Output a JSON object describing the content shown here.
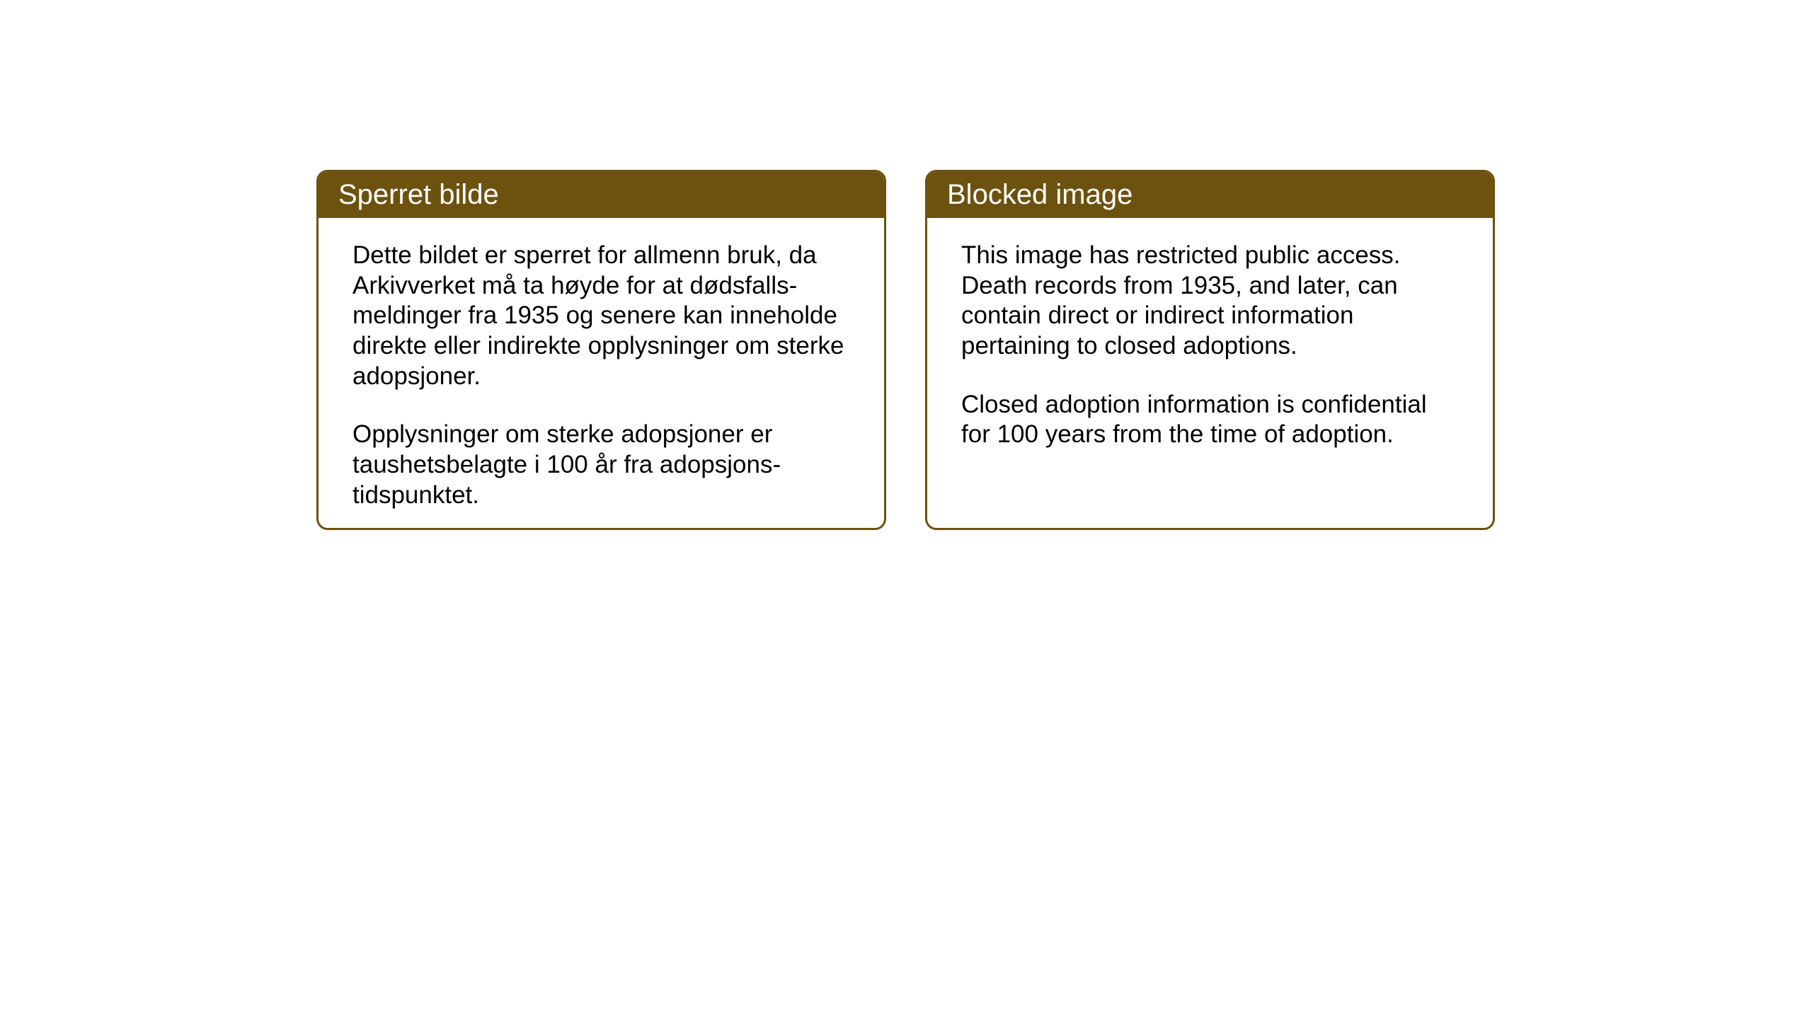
{
  "page": {
    "background_color": "#ffffff"
  },
  "cards": {
    "norwegian": {
      "title": "Sperret bilde",
      "paragraph1": "Dette bildet er sperret for allmenn bruk, da Arkivverket må ta høyde for at dødsfalls-meldinger fra 1935 og senere kan inneholde direkte eller indirekte opplysninger om sterke adopsjoner.",
      "paragraph2": "Opplysninger om sterke adopsjoner er taushetsbelagte i 100 år fra adopsjons-tidspunktet."
    },
    "english": {
      "title": "Blocked image",
      "paragraph1": "This image has restricted public access. Death records from 1935, and later, can contain direct or indirect information pertaining to closed adoptions.",
      "paragraph2": "Closed adoption information is confidential for 100 years from the time of adoption."
    }
  },
  "styling": {
    "header_bg_color": "#6d520f",
    "header_text_color": "#ffffff",
    "border_color": "#6d520f",
    "body_text_color": "#000000",
    "card_bg_color": "#ffffff",
    "header_font_size": 40,
    "body_font_size": 35,
    "border_radius": 16,
    "border_width": 3
  }
}
